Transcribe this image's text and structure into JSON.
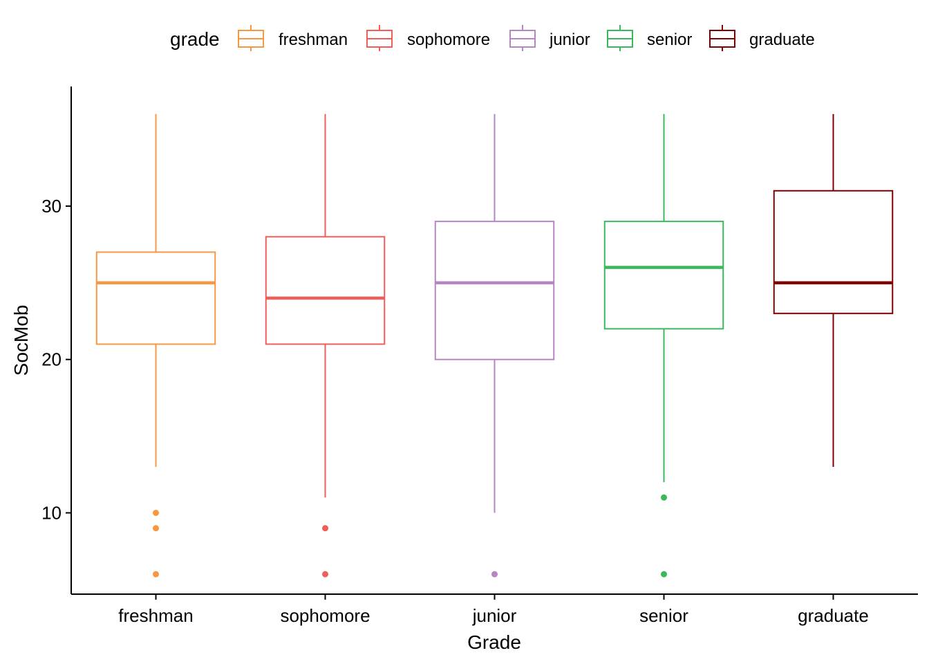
{
  "chart_data": {
    "type": "box",
    "xlabel": "Grade",
    "ylabel": "SocMob",
    "ylim": [
      4.7,
      37.8
    ],
    "yticks": [
      10,
      20,
      30
    ],
    "categories": [
      "freshman",
      "sophomore",
      "junior",
      "senior",
      "graduate"
    ],
    "legend": {
      "title": "grade",
      "placement": "top"
    },
    "series": [
      {
        "name": "freshman",
        "color": "#F8973F",
        "whisker_low": 13,
        "q1": 21,
        "median": 25,
        "q3": 27,
        "whisker_high": 36,
        "outliers": [
          10,
          9,
          6
        ]
      },
      {
        "name": "sophomore",
        "color": "#F15E5A",
        "whisker_low": 11,
        "q1": 21,
        "median": 24,
        "q3": 28,
        "whisker_high": 36,
        "outliers": [
          9,
          6
        ]
      },
      {
        "name": "junior",
        "color": "#B585C4",
        "whisker_low": 10,
        "q1": 20,
        "median": 25,
        "q3": 29,
        "whisker_high": 36,
        "outliers": [
          6
        ]
      },
      {
        "name": "senior",
        "color": "#39B85C",
        "whisker_low": 12,
        "q1": 22,
        "median": 26,
        "q3": 29,
        "whisker_high": 36,
        "outliers": [
          11,
          6
        ]
      },
      {
        "name": "graduate",
        "color": "#7F0000",
        "whisker_low": 13,
        "q1": 23,
        "median": 25,
        "q3": 31,
        "whisker_high": 36,
        "outliers": []
      }
    ]
  }
}
